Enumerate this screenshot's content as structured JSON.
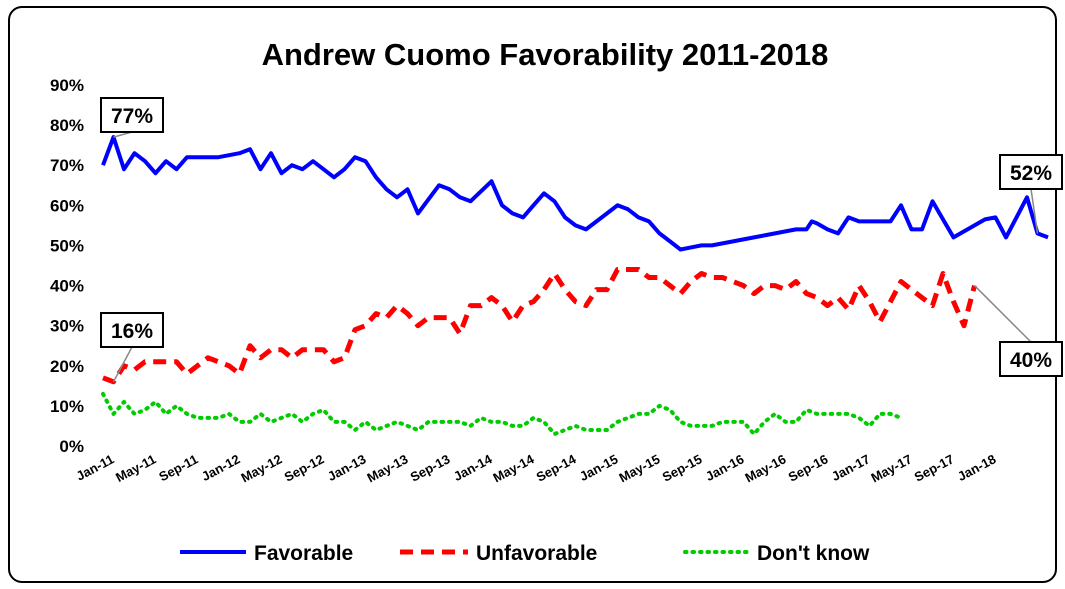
{
  "chart_data": {
    "type": "line",
    "title": "Andrew Cuomo Favorability 2011-2018",
    "xlabel": "",
    "ylabel": "",
    "ylim": [
      0,
      90
    ],
    "yticks": [
      "0%",
      "10%",
      "20%",
      "30%",
      "40%",
      "50%",
      "60%",
      "70%",
      "80%",
      "90%"
    ],
    "xticks": [
      "Jan-11",
      "May-11",
      "Sep-11",
      "Jan-12",
      "May-12",
      "Sep-12",
      "Jan-13",
      "May-13",
      "Sep-13",
      "Jan-14",
      "May-14",
      "Sep-14",
      "Jan-15",
      "May-15",
      "Sep-15",
      "Jan-16",
      "May-16",
      "Sep-16",
      "Jan-17",
      "May-17",
      "Sep-17",
      "Jan-18"
    ],
    "x_unit": "months since Jan-11",
    "grid": false,
    "legend_position": "bottom",
    "series": [
      {
        "name": "Favorable",
        "color": "#0000ff",
        "style": "solid",
        "points": [
          [
            0,
            70
          ],
          [
            1,
            77
          ],
          [
            2,
            69
          ],
          [
            3,
            73
          ],
          [
            4,
            71
          ],
          [
            5,
            68
          ],
          [
            6,
            71
          ],
          [
            7,
            69
          ],
          [
            8,
            72
          ],
          [
            9,
            72
          ],
          [
            10,
            72
          ],
          [
            11,
            72
          ],
          [
            12,
            72.5
          ],
          [
            13,
            73
          ],
          [
            14,
            74
          ],
          [
            15,
            69
          ],
          [
            16,
            73
          ],
          [
            17,
            68
          ],
          [
            18,
            70
          ],
          [
            19,
            69
          ],
          [
            20,
            71
          ],
          [
            21,
            69
          ],
          [
            22,
            67
          ],
          [
            23,
            69
          ],
          [
            24,
            72
          ],
          [
            25,
            71
          ],
          [
            26,
            67
          ],
          [
            27,
            64
          ],
          [
            28,
            62
          ],
          [
            29,
            64
          ],
          [
            30,
            58
          ],
          [
            31,
            61.5
          ],
          [
            32,
            65
          ],
          [
            33,
            64
          ],
          [
            34,
            62
          ],
          [
            35,
            61
          ],
          [
            36,
            63.5
          ],
          [
            37,
            66
          ],
          [
            38,
            60
          ],
          [
            39,
            58
          ],
          [
            40,
            57
          ],
          [
            41,
            60
          ],
          [
            42,
            63
          ],
          [
            43,
            61
          ],
          [
            44,
            57
          ],
          [
            45,
            55
          ],
          [
            46,
            54
          ],
          [
            47,
            56
          ],
          [
            48,
            58
          ],
          [
            49,
            60
          ],
          [
            50,
            59
          ],
          [
            51,
            57
          ],
          [
            52,
            56
          ],
          [
            53,
            53
          ],
          [
            54,
            51
          ],
          [
            55,
            49
          ],
          [
            56,
            49.5
          ],
          [
            57,
            50
          ],
          [
            58,
            50
          ],
          [
            59,
            50.5
          ],
          [
            60,
            51
          ],
          [
            61,
            51.5
          ],
          [
            62,
            52
          ],
          [
            63,
            52.5
          ],
          [
            64,
            53
          ],
          [
            65,
            53.5
          ],
          [
            66,
            54
          ],
          [
            67,
            54
          ],
          [
            67.5,
            56
          ],
          [
            68,
            55.5
          ],
          [
            69,
            54
          ],
          [
            70,
            53
          ],
          [
            71,
            57
          ],
          [
            72,
            56
          ],
          [
            73,
            56
          ],
          [
            74,
            56
          ],
          [
            75,
            56
          ],
          [
            76,
            60
          ],
          [
            77,
            54
          ],
          [
            78,
            54
          ],
          [
            79,
            61
          ],
          [
            80,
            56.5
          ],
          [
            81,
            52
          ],
          [
            82,
            53.5
          ],
          [
            83,
            55
          ],
          [
            84,
            56.5
          ],
          [
            85,
            57
          ],
          [
            86,
            52
          ],
          [
            87,
            57
          ],
          [
            88,
            62
          ],
          [
            89,
            53
          ],
          [
            90,
            52
          ]
        ]
      },
      {
        "name": "Unfavorable",
        "color": "#ff0000",
        "style": "dashed",
        "points": [
          [
            0,
            17
          ],
          [
            1,
            16
          ],
          [
            2,
            20
          ],
          [
            3,
            19
          ],
          [
            4,
            21
          ],
          [
            5,
            21
          ],
          [
            6,
            21
          ],
          [
            7,
            21
          ],
          [
            8,
            18
          ],
          [
            9,
            20
          ],
          [
            10,
            22
          ],
          [
            11,
            21
          ],
          [
            12,
            20
          ],
          [
            13,
            18
          ],
          [
            14,
            25
          ],
          [
            15,
            22
          ],
          [
            16,
            24
          ],
          [
            17,
            24
          ],
          [
            18,
            22
          ],
          [
            19,
            24
          ],
          [
            20,
            24
          ],
          [
            21,
            24
          ],
          [
            22,
            21
          ],
          [
            23,
            22
          ],
          [
            24,
            29
          ],
          [
            25,
            30
          ],
          [
            26,
            33
          ],
          [
            27,
            32
          ],
          [
            28,
            35
          ],
          [
            29,
            33
          ],
          [
            30,
            30
          ],
          [
            31,
            32
          ],
          [
            32,
            32
          ],
          [
            33,
            32
          ],
          [
            34,
            28
          ],
          [
            35,
            35
          ],
          [
            36,
            35
          ],
          [
            37,
            37
          ],
          [
            38,
            35
          ],
          [
            39,
            31
          ],
          [
            40,
            35
          ],
          [
            41,
            36
          ],
          [
            42,
            39
          ],
          [
            43,
            43
          ],
          [
            44,
            39
          ],
          [
            45,
            36
          ],
          [
            46,
            35
          ],
          [
            47,
            39
          ],
          [
            48,
            39
          ],
          [
            49,
            44
          ],
          [
            50,
            44
          ],
          [
            51,
            44
          ],
          [
            52,
            42
          ],
          [
            53,
            42
          ],
          [
            54,
            40
          ],
          [
            55,
            38
          ],
          [
            56,
            41
          ],
          [
            57,
            43
          ],
          [
            58,
            42
          ],
          [
            59,
            42
          ],
          [
            60,
            41
          ],
          [
            61,
            40
          ],
          [
            62,
            38
          ],
          [
            63,
            40
          ],
          [
            64,
            40
          ],
          [
            65,
            39
          ],
          [
            66,
            41
          ],
          [
            67,
            38
          ],
          [
            68,
            37
          ],
          [
            69,
            35
          ],
          [
            70,
            37
          ],
          [
            71,
            34
          ],
          [
            72,
            40
          ],
          [
            73,
            36
          ],
          [
            74,
            31
          ],
          [
            75,
            36
          ],
          [
            76,
            41
          ],
          [
            77,
            39
          ],
          [
            78,
            37
          ],
          [
            79,
            35
          ],
          [
            80,
            43
          ],
          [
            81,
            36
          ],
          [
            82,
            30
          ],
          [
            83,
            40
          ]
        ]
      },
      {
        "name": "Don't know",
        "color": "#00cc00",
        "style": "dotted",
        "points": [
          [
            0,
            13
          ],
          [
            1,
            8
          ],
          [
            2,
            11
          ],
          [
            3,
            8
          ],
          [
            4,
            9
          ],
          [
            5,
            11
          ],
          [
            6,
            8
          ],
          [
            7,
            10
          ],
          [
            8,
            8
          ],
          [
            9,
            7
          ],
          [
            10,
            7
          ],
          [
            11,
            7
          ],
          [
            12,
            8
          ],
          [
            13,
            6
          ],
          [
            14,
            6
          ],
          [
            15,
            8
          ],
          [
            16,
            6
          ],
          [
            17,
            7
          ],
          [
            18,
            8
          ],
          [
            19,
            6
          ],
          [
            20,
            8
          ],
          [
            21,
            9
          ],
          [
            22,
            6
          ],
          [
            23,
            6
          ],
          [
            24,
            4
          ],
          [
            25,
            6
          ],
          [
            26,
            4
          ],
          [
            27,
            5
          ],
          [
            28,
            6
          ],
          [
            29,
            5
          ],
          [
            30,
            4
          ],
          [
            31,
            6
          ],
          [
            32,
            6
          ],
          [
            33,
            6
          ],
          [
            34,
            6
          ],
          [
            35,
            5
          ],
          [
            36,
            7
          ],
          [
            37,
            6
          ],
          [
            38,
            6
          ],
          [
            39,
            5
          ],
          [
            40,
            5
          ],
          [
            41,
            7
          ],
          [
            42,
            6
          ],
          [
            43,
            3
          ],
          [
            44,
            4
          ],
          [
            45,
            5
          ],
          [
            46,
            4
          ],
          [
            47,
            4
          ],
          [
            48,
            4
          ],
          [
            49,
            6
          ],
          [
            50,
            7
          ],
          [
            51,
            8
          ],
          [
            52,
            8
          ],
          [
            53,
            10
          ],
          [
            54,
            9
          ],
          [
            55,
            6
          ],
          [
            56,
            5
          ],
          [
            57,
            5
          ],
          [
            58,
            5
          ],
          [
            59,
            6
          ],
          [
            60,
            6
          ],
          [
            61,
            6
          ],
          [
            62,
            3
          ],
          [
            63,
            6
          ],
          [
            64,
            8
          ],
          [
            65,
            6
          ],
          [
            66,
            6
          ],
          [
            67,
            9
          ],
          [
            68,
            8
          ],
          [
            69,
            8
          ],
          [
            70,
            8
          ],
          [
            71,
            8
          ],
          [
            72,
            7
          ],
          [
            73,
            5
          ],
          [
            74,
            8
          ],
          [
            75,
            8
          ],
          [
            76,
            7
          ]
        ]
      }
    ],
    "callouts": [
      {
        "label": "77%",
        "series": 0,
        "index": 1
      },
      {
        "label": "52%",
        "series": 0,
        "index": 90
      },
      {
        "label": "16%",
        "series": 1,
        "index": 1
      },
      {
        "label": "40%",
        "series": 1,
        "index": 83
      }
    ]
  }
}
